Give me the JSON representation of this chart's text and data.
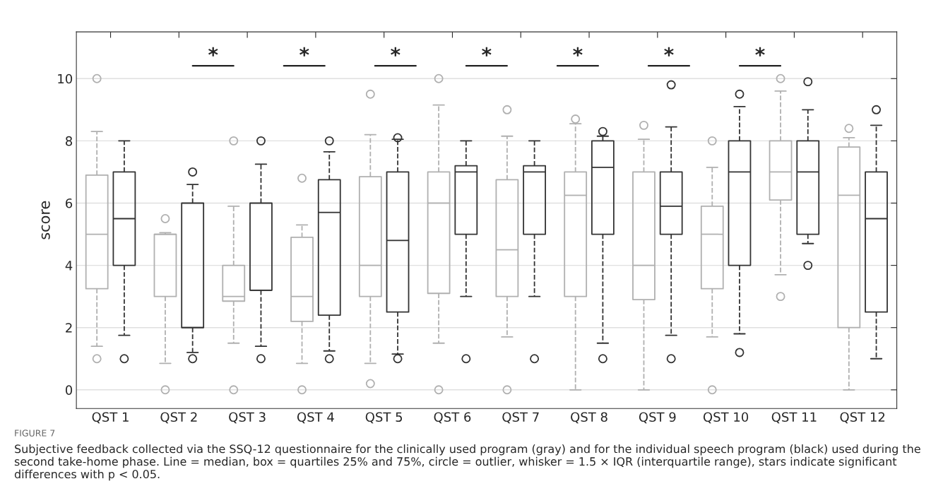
{
  "chart_data": {
    "type": "box",
    "ylabel": "score",
    "categories": [
      "QST 1",
      "QST 2",
      "QST 3",
      "QST 4",
      "QST 5",
      "QST 6",
      "QST 7",
      "QST 8",
      "QST 9",
      "QST 10",
      "QST 11",
      "QST 12"
    ],
    "ylim": [
      -0.6,
      11.5
    ],
    "yticks": [
      0,
      2,
      4,
      6,
      8,
      10
    ],
    "grid": "y",
    "line_style": "dashed",
    "marker": "circle",
    "series": [
      {
        "color": "#b0b0b0",
        "boxes": [
          {
            "low": 1.4,
            "q1": 3.25,
            "median": 5,
            "q3": 6.9,
            "high": 8.3,
            "outliers": [
              10,
              1
            ]
          },
          {
            "low": 0.85,
            "q1": 3,
            "median": 5,
            "q3": 5,
            "high": 5.05,
            "outliers": [
              5.5,
              0
            ]
          },
          {
            "low": 1.5,
            "q1": 2.85,
            "median": 3,
            "q3": 4,
            "high": 5.9,
            "outliers": [
              8,
              0
            ]
          },
          {
            "low": 0.85,
            "q1": 2.2,
            "median": 3,
            "q3": 4.9,
            "high": 5.3,
            "outliers": [
              6.8,
              0
            ]
          },
          {
            "low": 0.85,
            "q1": 3,
            "median": 4,
            "q3": 6.85,
            "high": 8.2,
            "outliers": [
              9.5,
              0.2
            ]
          },
          {
            "low": 1.5,
            "q1": 3.1,
            "median": 6,
            "q3": 7,
            "high": 9.15,
            "outliers": [
              10,
              0
            ]
          },
          {
            "low": 1.7,
            "q1": 3,
            "median": 4.5,
            "q3": 6.75,
            "high": 8.15,
            "outliers": [
              9,
              0
            ]
          },
          {
            "low": 0,
            "q1": 3,
            "median": 6.25,
            "q3": 7,
            "high": 8.55,
            "outliers": [
              8.7
            ]
          },
          {
            "low": 0,
            "q1": 2.9,
            "median": 4,
            "q3": 7,
            "high": 8.05,
            "outliers": [
              8.5
            ]
          },
          {
            "low": 1.7,
            "q1": 3.25,
            "median": 5,
            "q3": 5.9,
            "high": 7.15,
            "outliers": [
              8,
              0
            ]
          },
          {
            "low": 3.7,
            "q1": 6.1,
            "median": 7,
            "q3": 8,
            "high": 9.6,
            "outliers": [
              10,
              3
            ]
          },
          {
            "low": 0,
            "q1": 2,
            "median": 6.25,
            "q3": 7.8,
            "high": 8.1,
            "outliers": [
              8.4
            ]
          }
        ]
      },
      {
        "color": "#333333",
        "boxes": [
          {
            "low": 1.75,
            "q1": 4,
            "median": 5.5,
            "q3": 7,
            "high": 8,
            "outliers": [
              1
            ]
          },
          {
            "low": 1.2,
            "q1": 2,
            "median": 2,
            "q3": 6,
            "high": 6.6,
            "outliers": [
              7,
              1
            ]
          },
          {
            "low": 1.4,
            "q1": 3.2,
            "median": 3.2,
            "q3": 6,
            "high": 7.25,
            "outliers": [
              8,
              1
            ]
          },
          {
            "low": 1.25,
            "q1": 2.4,
            "median": 5.7,
            "q3": 6.75,
            "high": 7.65,
            "outliers": [
              8,
              1
            ]
          },
          {
            "low": 1.15,
            "q1": 2.5,
            "median": 4.8,
            "q3": 7,
            "high": 8.05,
            "outliers": [
              8.1,
              1
            ]
          },
          {
            "low": 3,
            "q1": 5,
            "median": 7,
            "q3": 7.2,
            "high": 8,
            "outliers": [
              1
            ]
          },
          {
            "low": 3,
            "q1": 5,
            "median": 7,
            "q3": 7.2,
            "high": 8,
            "outliers": [
              1
            ]
          },
          {
            "low": 1.5,
            "q1": 5,
            "median": 7.15,
            "q3": 8,
            "high": 8.15,
            "outliers": [
              8.3,
              1
            ]
          },
          {
            "low": 1.75,
            "q1": 5,
            "median": 5.9,
            "q3": 7,
            "high": 8.45,
            "outliers": [
              9.8,
              1
            ]
          },
          {
            "low": 1.8,
            "q1": 4,
            "median": 7,
            "q3": 8,
            "high": 9.1,
            "outliers": [
              9.5,
              1.2
            ]
          },
          {
            "low": 4.7,
            "q1": 5,
            "median": 7,
            "q3": 8,
            "high": 9,
            "outliers": [
              9.9,
              4
            ]
          },
          {
            "low": 1,
            "q1": 2.5,
            "median": 5.5,
            "q3": 7,
            "high": 8.5,
            "outliers": [
              9
            ]
          }
        ]
      }
    ],
    "annotations": [
      "*",
      "*",
      "*",
      "*",
      "*",
      "*",
      "*",
      "FIGURE 7",
      "Subjective feedback collected via the SSQ-12 questionnaire for the clinically used program (gray) and for the individual speech program (black) used during the second take-home phase. Line = median, box = quartiles 25% and 75%, circle = outlier, whisker = 1.5 × IQR (interquartile range), stars indicate significant differences with p < 0.05."
    ]
  }
}
